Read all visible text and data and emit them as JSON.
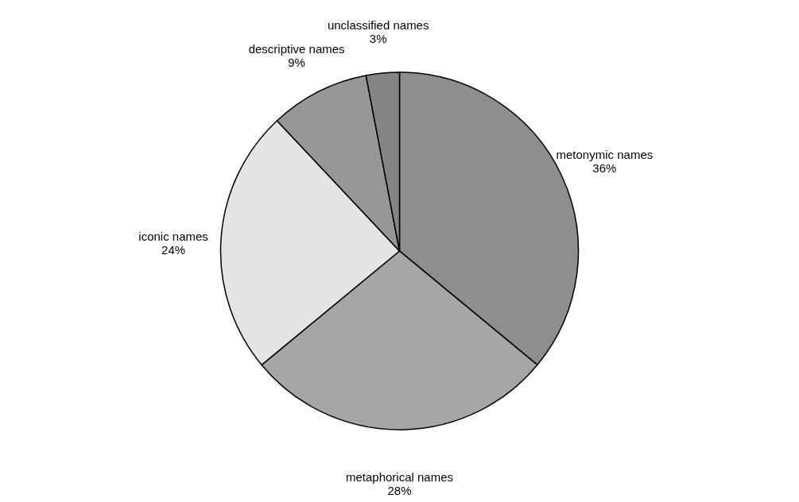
{
  "chart_data": {
    "type": "pie",
    "categories": [
      "metonymic names",
      "metaphorical names",
      "iconic names",
      "descriptive names",
      "unclassified names"
    ],
    "values": [
      36,
      28,
      24,
      9,
      3
    ],
    "value_labels": [
      "36%",
      "28%",
      "24%",
      "9%",
      "3%"
    ],
    "colors": [
      "#8e8e8e",
      "#a6a6a6",
      "#e4e4e4",
      "#979797",
      "#858585"
    ],
    "legend": false
  }
}
